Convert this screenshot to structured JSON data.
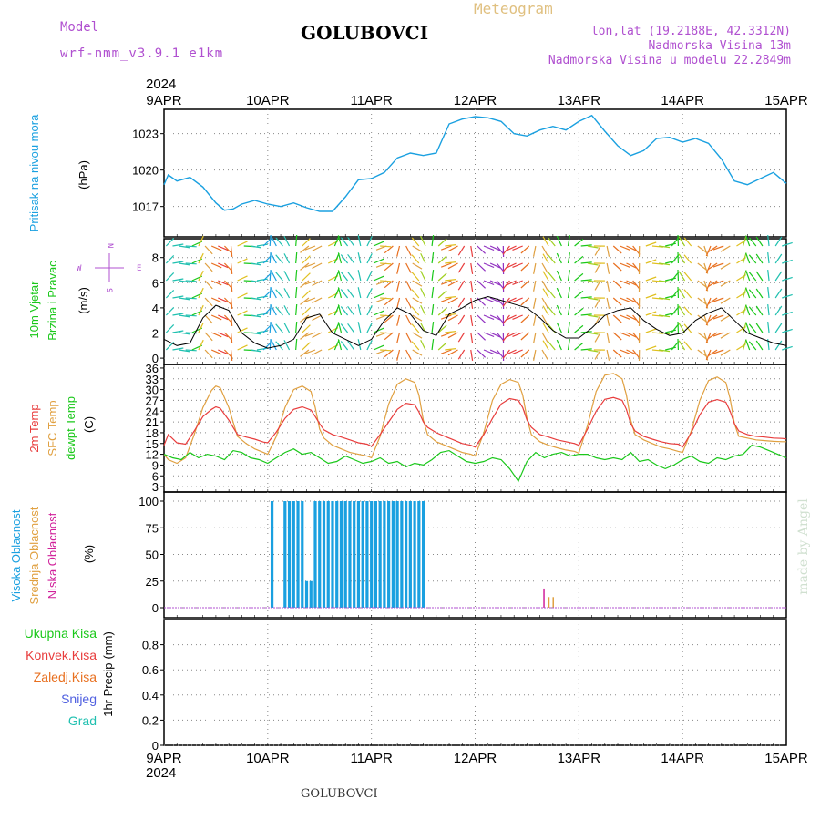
{
  "header": {
    "model_label": "Model",
    "model_name": "wrf-nmm_v3.9.1 e1km",
    "title": "GOLUBOVCI",
    "meteogram_label": "Meteogram",
    "lonlat": "lon,lat (19.2188E, 42.3312N)",
    "elevation": "Nadmorska Visina 13m",
    "model_elevation": "Nadmorska Visina u modelu 22.2849m"
  },
  "footer": {
    "station": "GOLUBOVCI",
    "credit": "made by Angel"
  },
  "colors": {
    "pressure": "#1aa0e0",
    "wind_speed": "#000000",
    "temp_2m": "#e83c3c",
    "temp_sfc": "#e0a040",
    "dewpoint": "#1ac81a",
    "cloud_high": "#1aa0e0",
    "cloud_mid": "#e0a040",
    "cloud_low": "#d0209a",
    "label_purple": "#b050d0",
    "label_tan": "#e0c080"
  },
  "chart_data": [
    {
      "type": "line",
      "ylabel": "Pritisak na nivou mora",
      "unit": "(hPa)",
      "x_axis": {
        "year": "2024",
        "ticks": [
          "9APR",
          "10APR",
          "11APR",
          "12APR",
          "13APR",
          "14APR",
          "15APR"
        ],
        "xlim": [
          0,
          144
        ]
      },
      "ylim": [
        1014.5,
        1025
      ],
      "yticks": [
        1017,
        1020,
        1023
      ],
      "series": [
        {
          "x": [
            0,
            1,
            3,
            6,
            9,
            12,
            14,
            16,
            18,
            21,
            24,
            27,
            30,
            33,
            36,
            39,
            42,
            45,
            48,
            51,
            54,
            57,
            60,
            63,
            66,
            69,
            72,
            75,
            78,
            81,
            84,
            87,
            90,
            93,
            96,
            99,
            102,
            105,
            108,
            111,
            114,
            117,
            120,
            123,
            126,
            129,
            132,
            135,
            138,
            141,
            144
          ],
          "values": [
            1018.8,
            1019.6,
            1019.1,
            1019.4,
            1018.6,
            1017.3,
            1016.7,
            1016.8,
            1017.2,
            1017.5,
            1017.2,
            1017.0,
            1017.3,
            1016.9,
            1016.6,
            1016.6,
            1017.8,
            1019.2,
            1019.3,
            1019.8,
            1021.0,
            1021.4,
            1021.2,
            1021.4,
            1023.8,
            1024.2,
            1024.4,
            1024.3,
            1024.0,
            1023.0,
            1022.8,
            1023.3,
            1023.6,
            1023.3,
            1024.0,
            1024.5,
            1023.2,
            1022.0,
            1021.2,
            1021.6,
            1022.6,
            1022.7,
            1022.3,
            1022.6,
            1022.2,
            1020.9,
            1019.1,
            1018.8,
            1019.3,
            1019.8,
            1018.9
          ]
        }
      ]
    },
    {
      "type": "line",
      "ylabel": "10m Vjetar Brzina i Pravac",
      "unit": "(m/s)",
      "compass": [
        "N",
        "W",
        "E",
        "S"
      ],
      "ylim": [
        -0.5,
        9.5
      ],
      "yticks": [
        0,
        2,
        4,
        6,
        8
      ],
      "series": [
        {
          "name": "wind_speed",
          "x": [
            0,
            3,
            6,
            9,
            12,
            15,
            18,
            21,
            24,
            27,
            30,
            33,
            36,
            39,
            42,
            45,
            48,
            51,
            54,
            57,
            60,
            63,
            66,
            69,
            72,
            75,
            78,
            81,
            84,
            87,
            90,
            93,
            96,
            99,
            102,
            105,
            108,
            111,
            114,
            117,
            120,
            123,
            126,
            129,
            132,
            135,
            138,
            141,
            144
          ],
          "values": [
            1.5,
            1.0,
            1.2,
            3.2,
            4.2,
            3.8,
            2.0,
            1.2,
            0.8,
            1.0,
            1.5,
            3.2,
            3.5,
            2.0,
            1.5,
            1.0,
            1.5,
            3.0,
            4.0,
            3.5,
            2.2,
            1.8,
            3.5,
            4.0,
            4.6,
            4.9,
            4.6,
            4.3,
            4.0,
            3.2,
            2.2,
            1.6,
            1.6,
            2.4,
            3.4,
            3.8,
            4.0,
            3.0,
            2.3,
            1.8,
            2.0,
            3.0,
            3.6,
            4.0,
            3.0,
            2.0,
            1.6,
            1.2,
            1.0
          ]
        }
      ]
    },
    {
      "type": "line",
      "ylabel": "2m Temp / SFC Temp / dewpt Temp",
      "unit": "(C)",
      "ylim": [
        1.5,
        37
      ],
      "yticks": [
        3,
        6,
        9,
        12,
        15,
        18,
        21,
        24,
        27,
        30,
        33,
        36
      ],
      "series": [
        {
          "name": "2m Temp",
          "x": [
            0,
            1,
            3,
            5,
            7,
            9,
            11,
            12,
            13,
            15,
            17,
            19,
            21,
            23,
            24,
            26,
            28,
            30,
            32,
            34,
            35,
            36,
            37,
            39,
            41,
            43,
            45,
            47,
            48,
            50,
            52,
            54,
            56,
            58,
            59,
            60,
            61,
            63,
            65,
            67,
            69,
            71,
            72,
            74,
            76,
            78,
            80,
            82,
            83,
            84,
            85,
            87,
            89,
            91,
            93,
            95,
            96,
            98,
            100,
            102,
            104,
            106,
            107,
            108,
            109,
            111,
            113,
            115,
            117,
            119,
            120,
            122,
            124,
            126,
            128,
            130,
            131,
            132,
            133,
            135,
            137,
            139,
            141,
            143,
            144
          ],
          "values": [
            14.5,
            17.5,
            15.2,
            14.8,
            18.5,
            22.5,
            24.5,
            25.2,
            24.8,
            21.5,
            17.5,
            16.8,
            16.2,
            15.4,
            15.2,
            18.2,
            22.0,
            24.5,
            25.2,
            24.3,
            22.5,
            20.5,
            18.8,
            17.5,
            16.8,
            16.0,
            15.2,
            14.8,
            14.2,
            17.5,
            21.0,
            24.5,
            26.2,
            25.8,
            23.8,
            21.0,
            19.5,
            18.0,
            17.0,
            16.0,
            15.0,
            14.5,
            14.0,
            17.5,
            22.0,
            26.0,
            27.5,
            27.0,
            25.0,
            21.5,
            19.5,
            17.5,
            16.8,
            16.0,
            15.5,
            15.0,
            14.5,
            19.0,
            24.0,
            27.3,
            27.8,
            27.0,
            24.5,
            20.5,
            18.5,
            17.0,
            16.2,
            15.5,
            15.0,
            14.8,
            14.0,
            18.0,
            23.0,
            26.5,
            27.2,
            26.5,
            24.0,
            20.5,
            18.5,
            17.5,
            17.0,
            16.8,
            16.5,
            16.4,
            16.3
          ]
        },
        {
          "name": "SFC Temp",
          "x": [
            0,
            1,
            3,
            5,
            7,
            9,
            11,
            12,
            13,
            15,
            17,
            19,
            21,
            23,
            24,
            26,
            28,
            30,
            32,
            34,
            35,
            36,
            37,
            39,
            41,
            43,
            45,
            47,
            48,
            50,
            52,
            54,
            56,
            58,
            59,
            60,
            61,
            63,
            65,
            67,
            69,
            71,
            72,
            74,
            76,
            78,
            80,
            82,
            83,
            84,
            85,
            87,
            89,
            91,
            93,
            95,
            96,
            98,
            100,
            102,
            104,
            106,
            107,
            108,
            109,
            111,
            113,
            115,
            117,
            119,
            120,
            122,
            124,
            126,
            128,
            130,
            131,
            132,
            133,
            135,
            137,
            139,
            141,
            143,
            144
          ],
          "values": [
            12.0,
            10.5,
            9.5,
            11.0,
            17.5,
            25.0,
            29.8,
            31.0,
            30.5,
            25.0,
            17.0,
            15.0,
            13.5,
            12.5,
            12.0,
            17.0,
            25.0,
            30.0,
            31.0,
            29.5,
            25.0,
            19.0,
            16.5,
            14.5,
            13.5,
            12.5,
            12.0,
            11.5,
            11.0,
            17.0,
            26.0,
            31.5,
            33.0,
            32.0,
            28.5,
            21.5,
            17.5,
            15.5,
            14.5,
            13.5,
            12.5,
            12.0,
            11.5,
            18.0,
            27.0,
            31.5,
            32.8,
            32.0,
            28.5,
            22.0,
            17.5,
            15.5,
            14.5,
            13.8,
            13.2,
            12.8,
            12.3,
            20.0,
            29.5,
            34.0,
            34.5,
            33.0,
            28.5,
            21.5,
            17.5,
            16.0,
            15.0,
            14.0,
            13.5,
            12.8,
            12.5,
            18.5,
            27.0,
            32.5,
            33.5,
            32.0,
            27.5,
            20.5,
            17.0,
            16.5,
            16.0,
            15.8,
            15.6,
            15.5,
            15.5
          ]
        },
        {
          "name": "dewpt Temp",
          "x": [
            0,
            2,
            4,
            6,
            8,
            10,
            12,
            14,
            16,
            18,
            20,
            22,
            24,
            26,
            28,
            30,
            32,
            34,
            36,
            38,
            40,
            42,
            44,
            46,
            48,
            50,
            52,
            54,
            56,
            58,
            60,
            62,
            64,
            66,
            68,
            70,
            72,
            74,
            76,
            78,
            80,
            82,
            84,
            86,
            88,
            90,
            92,
            94,
            96,
            98,
            100,
            102,
            104,
            106,
            108,
            110,
            112,
            114,
            116,
            118,
            120,
            122,
            124,
            126,
            128,
            130,
            132,
            134,
            136,
            138,
            140,
            142,
            144
          ],
          "values": [
            12.0,
            11.0,
            10.5,
            12.5,
            11.0,
            12.0,
            11.5,
            10.5,
            13.0,
            12.5,
            11.0,
            10.5,
            9.5,
            11.0,
            12.5,
            13.5,
            12.0,
            12.5,
            11.0,
            9.5,
            10.0,
            11.5,
            10.5,
            9.5,
            10.0,
            11.0,
            9.5,
            10.0,
            8.5,
            9.5,
            9.0,
            10.5,
            12.5,
            13.0,
            11.5,
            10.0,
            9.5,
            10.0,
            11.0,
            10.5,
            8.0,
            4.5,
            10.0,
            12.5,
            11.0,
            12.0,
            12.5,
            11.5,
            12.0,
            12.0,
            11.0,
            10.5,
            11.0,
            10.5,
            12.5,
            10.0,
            10.5,
            9.0,
            8.0,
            9.0,
            10.5,
            11.5,
            10.0,
            9.5,
            11.0,
            10.5,
            11.5,
            12.0,
            14.5,
            14.0,
            13.0,
            12.0,
            11.0
          ]
        }
      ]
    },
    {
      "type": "bar",
      "ylabel": "Visoka Oblacnost / Srednja Oblacnost / Niska Oblacnost",
      "unit": "(%)",
      "ylim": [
        0,
        100
      ],
      "yticks": [
        0,
        25,
        50,
        75,
        100
      ],
      "series": [
        {
          "name": "Visoka Oblacnost",
          "x": [
            25,
            28,
            29,
            30,
            31,
            32,
            33,
            34,
            35,
            36,
            37,
            38,
            39,
            40,
            41,
            42,
            43,
            44,
            45,
            46,
            47,
            48,
            49,
            50,
            51,
            52,
            53,
            54,
            55,
            56,
            57,
            58,
            59,
            60
          ],
          "values": [
            100,
            100,
            100,
            100,
            100,
            100,
            25,
            25,
            100,
            100,
            100,
            100,
            100,
            100,
            100,
            100,
            100,
            100,
            100,
            100,
            100,
            100,
            100,
            100,
            100,
            100,
            100,
            100,
            100,
            100,
            100,
            100,
            100,
            100
          ]
        },
        {
          "name": "Srednja Oblacnost",
          "x": [
            89,
            90
          ],
          "values": [
            10,
            10
          ]
        },
        {
          "name": "Niska Oblacnost",
          "x": [
            88
          ],
          "values": [
            18
          ]
        }
      ]
    },
    {
      "type": "bar",
      "ylabel": "1hr Precip",
      "unit": "(mm)",
      "ylim": [
        0,
        1
      ],
      "yticks": [
        0,
        0.2,
        0.4,
        0.6,
        0.8
      ],
      "legend": [
        "Ukupna Kisa",
        "Konvek.Kisa",
        "Zaledj.Kisa",
        "Snijeg",
        "Grad"
      ],
      "series": []
    }
  ]
}
